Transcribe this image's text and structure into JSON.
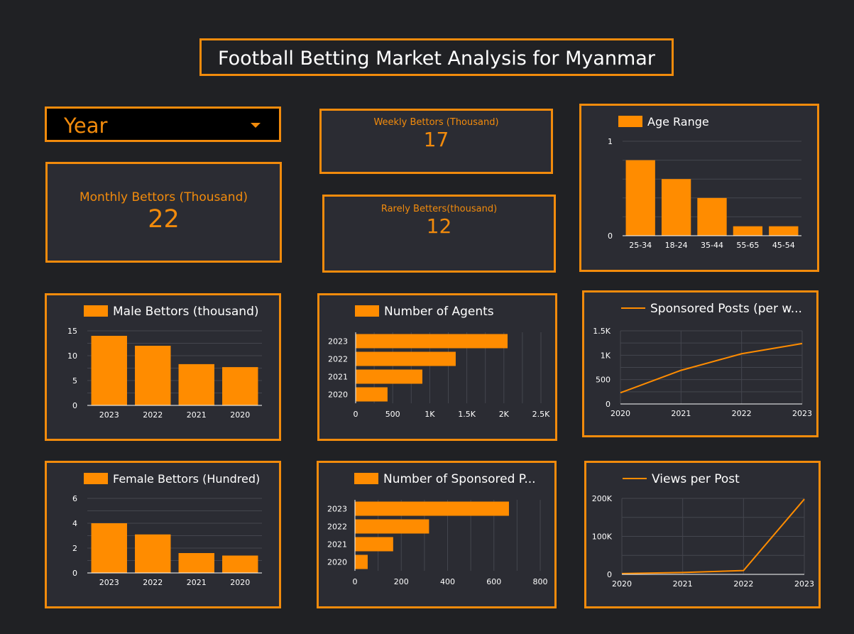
{
  "title": "Football Betting Market Analysis for Myanmar",
  "filter": {
    "label": "Year"
  },
  "scorecards": {
    "monthly": {
      "label": "Monthly Bettors (Thousand)",
      "value": "22"
    },
    "weekly": {
      "label": "Weekly Bettors (Thousand)",
      "value": "17"
    },
    "rarely": {
      "label": "Rarely Betters(thousand)",
      "value": "12"
    }
  },
  "colors": {
    "accent": "#f28b0c",
    "bar": "#ff8c00",
    "panel_bg": "#2b2c33",
    "page_bg": "#202124",
    "grid": "#44464e",
    "axis_text": "#ffffff"
  },
  "chart_data": [
    {
      "id": "age",
      "type": "bar",
      "orientation": "vertical",
      "legend": "Age Range",
      "categories": [
        "25-34",
        "18-24",
        "35-44",
        "55-65",
        "45-54"
      ],
      "values": [
        0.8,
        0.6,
        0.4,
        0.1,
        0.1
      ],
      "ylim": [
        0,
        1
      ],
      "yticks": [
        0,
        1
      ],
      "ytick_labels": [
        "0",
        "1"
      ],
      "grid_lines": 5
    },
    {
      "id": "male",
      "type": "bar",
      "orientation": "vertical",
      "legend": "Male Bettors (thousand)",
      "categories": [
        "2023",
        "2022",
        "2021",
        "2020"
      ],
      "values": [
        14,
        12,
        8.3,
        7.7
      ],
      "ylim": [
        0,
        15
      ],
      "yticks": [
        0,
        5,
        10,
        15
      ],
      "ytick_labels": [
        "0",
        "5",
        "10",
        "15"
      ],
      "grid_lines": 6
    },
    {
      "id": "agents",
      "type": "bar",
      "orientation": "horizontal",
      "legend": "Number of Agents",
      "categories": [
        "2023",
        "2022",
        "2021",
        "2020"
      ],
      "values": [
        2050,
        1350,
        900,
        430
      ],
      "xlim": [
        0,
        2500
      ],
      "xticks": [
        0,
        500,
        1000,
        1500,
        2000,
        2500
      ],
      "xtick_labels": [
        "0",
        "500",
        "1K",
        "1.5K",
        "2K",
        "2.5K"
      ],
      "grid_lines": 10
    },
    {
      "id": "sponsored",
      "type": "line",
      "legend": "Sponsored Posts (per w...",
      "x": [
        "2020",
        "2021",
        "2022",
        "2023"
      ],
      "values": [
        230,
        690,
        1030,
        1240
      ],
      "ylim": [
        0,
        1500
      ],
      "yticks": [
        0,
        500,
        1000,
        1500
      ],
      "ytick_labels": [
        "0",
        "500",
        "1K",
        "1.5K"
      ],
      "grid_lines": 6
    },
    {
      "id": "female",
      "type": "bar",
      "orientation": "vertical",
      "legend": "Female Bettors (Hundred)",
      "categories": [
        "2023",
        "2022",
        "2021",
        "2020"
      ],
      "values": [
        4.0,
        3.1,
        1.6,
        1.4
      ],
      "ylim": [
        0,
        6
      ],
      "yticks": [
        0,
        2,
        4,
        6
      ],
      "ytick_labels": [
        "0",
        "2",
        "4",
        "6"
      ],
      "grid_lines": 6
    },
    {
      "id": "nsp",
      "type": "bar",
      "orientation": "horizontal",
      "legend": "Number of Sponsored P...",
      "categories": [
        "2023",
        "2022",
        "2021",
        "2020"
      ],
      "values": [
        665,
        320,
        165,
        55
      ],
      "xlim": [
        0,
        800
      ],
      "xticks": [
        0,
        200,
        400,
        600,
        800
      ],
      "xtick_labels": [
        "0",
        "200",
        "400",
        "600",
        "800"
      ],
      "grid_lines": 8
    },
    {
      "id": "views",
      "type": "line",
      "legend": "Views per Post",
      "x": [
        "2020",
        "2021",
        "2022",
        "2023"
      ],
      "values": [
        2000,
        5000,
        10000,
        198000
      ],
      "ylim": [
        0,
        200000
      ],
      "yticks": [
        0,
        100000,
        200000
      ],
      "ytick_labels": [
        "0",
        "100K",
        "200K"
      ],
      "grid_lines": 4
    }
  ]
}
